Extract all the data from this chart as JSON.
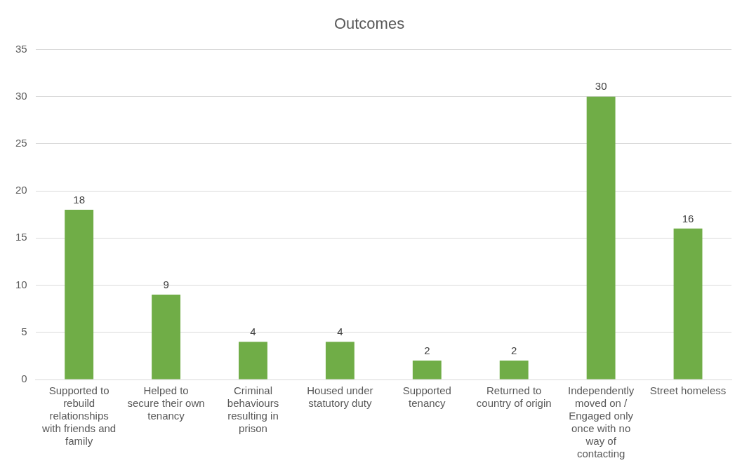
{
  "chart_data": {
    "type": "bar",
    "title": "Outcomes",
    "categories": [
      "Supported to rebuild relationships with friends and family",
      "Helped to secure their own tenancy",
      "Criminal behaviours resulting in prison",
      "Housed under statutory duty",
      "Supported tenancy",
      "Returned to country of origin",
      "Independently moved on / Engaged only once with no way of contacting",
      "Street homeless"
    ],
    "values": [
      18,
      9,
      4,
      4,
      2,
      2,
      30,
      16
    ],
    "color": "#70ad47",
    "ylim": [
      0,
      35
    ],
    "yticks": [
      0,
      5,
      10,
      15,
      20,
      25,
      30,
      35
    ],
    "grid": "y",
    "data_labels": true,
    "legend": false
  }
}
